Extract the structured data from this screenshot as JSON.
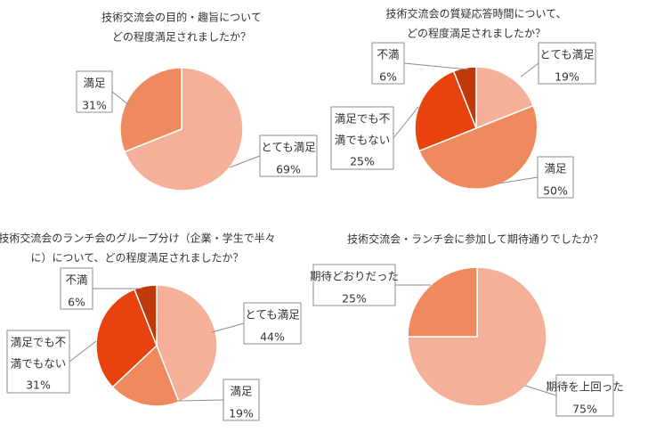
{
  "chart_data": [
    {
      "type": "pie",
      "title": [
        "技術交流会の目的・趣旨について",
        "どの程度満足されましたか？"
      ],
      "slices": [
        {
          "name": "とても満足",
          "value": 69,
          "label": "69%",
          "color": "#F5B09A"
        },
        {
          "name": "満足",
          "value": 31,
          "label": "31%",
          "color": "#EF8A5E"
        }
      ]
    },
    {
      "type": "pie",
      "title": [
        "技術交流会の質疑応答時間について、",
        "どの程度満足されましたか？"
      ],
      "slices": [
        {
          "name": "とても満足",
          "value": 19,
          "label": "19%",
          "color": "#F5B09A"
        },
        {
          "name": "満足",
          "value": 50,
          "label": "50%",
          "color": "#EF8A5E"
        },
        {
          "name": "満足でも不満でもない",
          "value": 25,
          "label": "25%",
          "color": "#E8430F"
        },
        {
          "name": "不満",
          "value": 6,
          "label": "6%",
          "color": "#C0390B"
        }
      ]
    },
    {
      "type": "pie",
      "title": [
        "技術交流会のランチ会のグループ分け（企業・学生で半々",
        "に）について、どの程度満足されましたか？"
      ],
      "slices": [
        {
          "name": "とても満足",
          "value": 44,
          "label": "44%",
          "color": "#F5B09A"
        },
        {
          "name": "満足",
          "value": 19,
          "label": "19%",
          "color": "#EF8A5E"
        },
        {
          "name": "満足でも不満でもない",
          "value": 31,
          "label": "31%",
          "color": "#E8430F"
        },
        {
          "name": "不満",
          "value": 6,
          "label": "6%",
          "color": "#C0390B"
        }
      ]
    },
    {
      "type": "pie",
      "title": [
        "技術交流会・ランチ会に参加して期待通りでしたか？"
      ],
      "slices": [
        {
          "name": "期待を上回った",
          "value": 75,
          "label": "75%",
          "color": "#F5B09A"
        },
        {
          "name": "期待どおりだった",
          "value": 25,
          "label": "25%",
          "color": "#EF8A5E"
        }
      ]
    }
  ]
}
